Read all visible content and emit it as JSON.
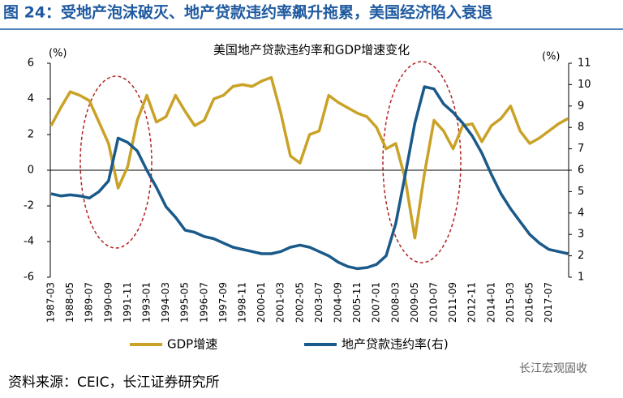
{
  "header": {
    "title": "图 24：受地产泡沫破灭、地产贷款违约率飙升拖累，美国经济陷入衰退"
  },
  "chart_data": {
    "type": "line",
    "title": "美国地产贷款违约率和GDP增速变化",
    "y_unit": "(%)",
    "y2_unit": "(%)",
    "categories": [
      "1987-03",
      null,
      "1988-05",
      null,
      "1989-07",
      null,
      "1990-09",
      null,
      "1991-11",
      null,
      "1993-01",
      null,
      "1994-03",
      null,
      "1995-05",
      null,
      "1996-07",
      null,
      "1997-09",
      null,
      "1998-11",
      null,
      "2000-01",
      null,
      "2001-03",
      null,
      "2002-05",
      null,
      "2003-07",
      null,
      "2004-09",
      null,
      "2005-11",
      null,
      "2007-01",
      null,
      "2008-03",
      null,
      "2009-05",
      null,
      "2010-07",
      null,
      "2011-09",
      null,
      "2012-11",
      null,
      "2014-01",
      null,
      "2015-03",
      null,
      "2016-05",
      null,
      "2017-07",
      null,
      null
    ],
    "series": [
      {
        "name": "GDP增速",
        "color": "#c9a227",
        "axis": "y",
        "values": [
          2.5,
          3.5,
          4.4,
          4.2,
          3.9,
          2.7,
          1.5,
          -1.0,
          0.2,
          2.8,
          4.2,
          2.7,
          3.0,
          4.2,
          3.3,
          2.5,
          2.8,
          4.0,
          4.2,
          4.7,
          4.8,
          4.7,
          5.0,
          5.2,
          3.2,
          0.8,
          0.4,
          2.0,
          2.2,
          4.2,
          3.8,
          3.5,
          3.2,
          3.0,
          2.4,
          1.2,
          1.5,
          -0.5,
          -3.8,
          -0.2,
          2.8,
          2.2,
          1.2,
          2.5,
          2.6,
          1.6,
          2.5,
          2.9,
          3.6,
          2.2,
          1.5,
          1.8,
          2.2,
          2.6,
          2.9
        ]
      },
      {
        "name": "地产贷款违约率(右)",
        "color": "#1a5a8a",
        "axis": "y2",
        "values": [
          4.9,
          4.8,
          4.85,
          4.8,
          4.7,
          5.0,
          5.5,
          7.5,
          7.3,
          6.9,
          6.0,
          5.2,
          4.3,
          3.8,
          3.2,
          3.1,
          2.9,
          2.8,
          2.6,
          2.4,
          2.3,
          2.2,
          2.1,
          2.1,
          2.2,
          2.4,
          2.5,
          2.4,
          2.2,
          2.0,
          1.7,
          1.5,
          1.4,
          1.45,
          1.6,
          2.0,
          3.5,
          5.8,
          8.2,
          9.9,
          9.8,
          9.1,
          8.7,
          8.2,
          7.6,
          6.8,
          5.8,
          4.9,
          4.2,
          3.6,
          3.0,
          2.6,
          2.3,
          2.2,
          2.1
        ]
      }
    ],
    "ylim": [
      -6,
      6
    ],
    "yticks": [
      -6,
      -4,
      -2,
      0,
      2,
      4,
      6
    ],
    "y2lim": [
      1,
      11
    ],
    "y2ticks": [
      1,
      2,
      3,
      4,
      5,
      6,
      7,
      8,
      9,
      10,
      11
    ]
  },
  "source": "资料来源：CEIC，长江证券研究所",
  "watermark": "长江宏观固收"
}
